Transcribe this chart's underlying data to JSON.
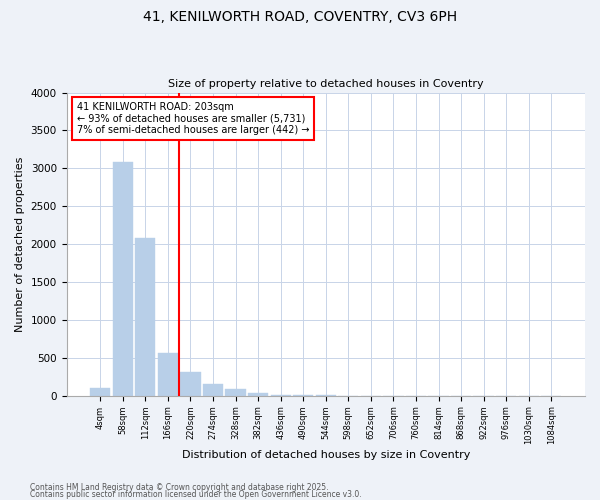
{
  "title_line1": "41, KENILWORTH ROAD, COVENTRY, CV3 6PH",
  "title_line2": "Size of property relative to detached houses in Coventry",
  "xlabel": "Distribution of detached houses by size in Coventry",
  "ylabel": "Number of detached properties",
  "bin_labels": [
    "4sqm",
    "58sqm",
    "112sqm",
    "166sqm",
    "220sqm",
    "274sqm",
    "328sqm",
    "382sqm",
    "436sqm",
    "490sqm",
    "544sqm",
    "598sqm",
    "652sqm",
    "706sqm",
    "760sqm",
    "814sqm",
    "868sqm",
    "922sqm",
    "976sqm",
    "1030sqm",
    "1084sqm"
  ],
  "bar_heights": [
    100,
    3080,
    2080,
    570,
    310,
    150,
    90,
    40,
    15,
    8,
    4,
    2,
    1,
    0,
    0,
    0,
    0,
    0,
    0,
    0,
    0
  ],
  "bar_color": "#b8cfe8",
  "bar_edge_color": "#b8cfe8",
  "vline_x_index": 3.5,
  "vline_color": "red",
  "annotation_text": "41 KENILWORTH ROAD: 203sqm\n← 93% of detached houses are smaller (5,731)\n7% of semi-detached houses are larger (442) →",
  "annotation_box_color": "red",
  "annotation_bg_color": "white",
  "ylim": [
    0,
    4000
  ],
  "yticks": [
    0,
    500,
    1000,
    1500,
    2000,
    2500,
    3000,
    3500,
    4000
  ],
  "footer_line1": "Contains HM Land Registry data © Crown copyright and database right 2025.",
  "footer_line2": "Contains public sector information licensed under the Open Government Licence v3.0.",
  "bg_color": "#eef2f8",
  "plot_bg_color": "white",
  "grid_color": "#c8d4e8"
}
